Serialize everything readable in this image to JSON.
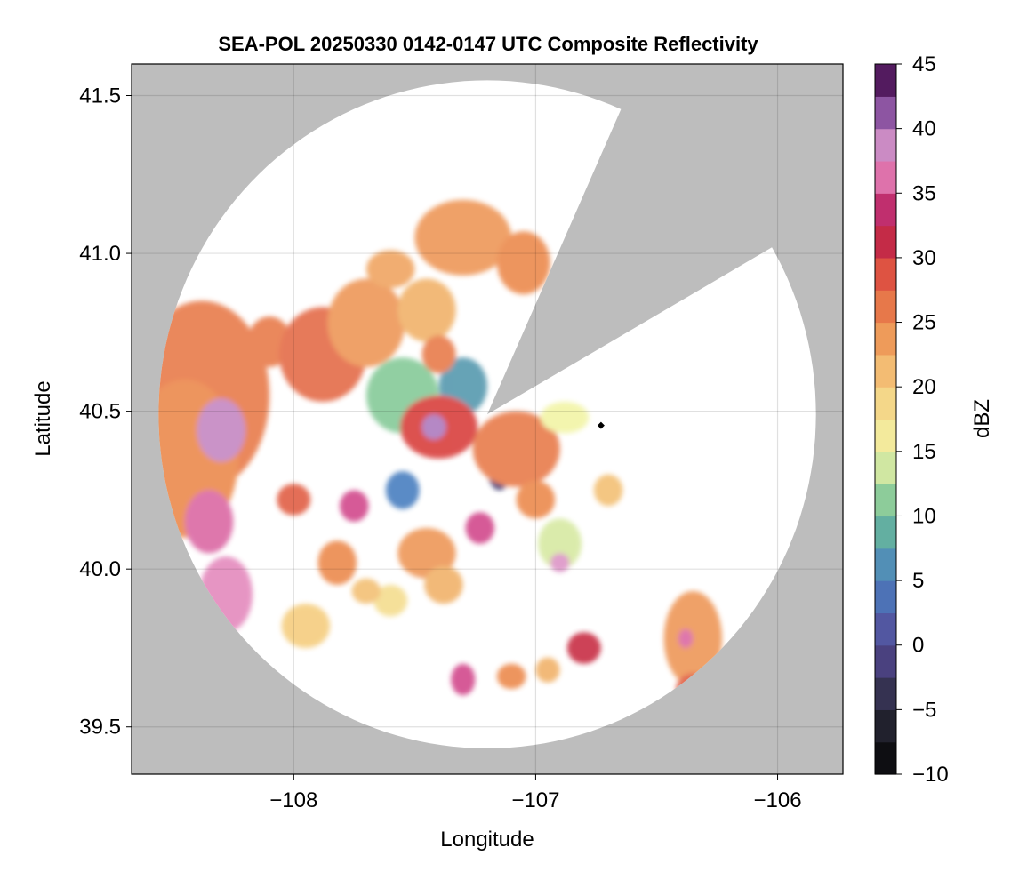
{
  "chart_data": {
    "type": "heatmap",
    "title": "SEA-POL 20250330 0142-0147 UTC Composite Reflectivity",
    "xlabel": "Longitude",
    "ylabel": "Latitude",
    "xlim": [
      -108.67,
      -105.73
    ],
    "ylim": [
      39.35,
      41.6
    ],
    "xticks": [
      -108,
      -107,
      -106
    ],
    "xtick_labels": [
      "−108",
      "−107",
      "−106"
    ],
    "yticks": [
      39.5,
      40.0,
      40.5,
      41.0,
      41.5
    ],
    "ytick_labels": [
      "39.5",
      "40.0",
      "40.5",
      "41.0",
      "41.5"
    ],
    "grid": true,
    "background_color": "#bdbdbd",
    "coverage_color": "#ffffff",
    "radar": {
      "center": [
        -107.2,
        40.49
      ],
      "range_deg": 1.43,
      "blocked_sectors_deg_cw_from_north": [
        [
          25,
          60
        ]
      ]
    },
    "site_marker": {
      "lon": -106.73,
      "lat": 40.455,
      "color": "#000000"
    },
    "colorbar": {
      "label": "dBZ",
      "min": -10,
      "max": 45,
      "step": 2.5,
      "ticks": [
        -10,
        -5,
        0,
        5,
        10,
        15,
        20,
        25,
        30,
        35,
        40,
        45
      ],
      "tick_labels": [
        "−10",
        "−5",
        "0",
        "5",
        "10",
        "15",
        "20",
        "25",
        "30",
        "35",
        "40",
        "45"
      ],
      "colormap_stops": [
        {
          "v": -10,
          "c": "#050505"
        },
        {
          "v": -5,
          "c": "#2a2a3a"
        },
        {
          "v": 0,
          "c": "#544996"
        },
        {
          "v": 5,
          "c": "#4a7fc0"
        },
        {
          "v": 10,
          "c": "#6bbf96"
        },
        {
          "v": 15,
          "c": "#f2f4a6"
        },
        {
          "v": 20,
          "c": "#f5cd7f"
        },
        {
          "v": 25,
          "c": "#ec8a4e"
        },
        {
          "v": 30,
          "c": "#d9403e"
        },
        {
          "v": 32.5,
          "c": "#ae1550"
        },
        {
          "v": 35,
          "c": "#d2488c"
        },
        {
          "v": 37.5,
          "c": "#e99bc9"
        },
        {
          "v": 40,
          "c": "#ad7bbf"
        },
        {
          "v": 42.5,
          "c": "#6c2e85"
        },
        {
          "v": 45,
          "c": "#3a0838"
        }
      ]
    },
    "echo_cells": [
      {
        "lon": -108.38,
        "lat": 40.55,
        "rx": 0.28,
        "ry": 0.3,
        "dbz": 26
      },
      {
        "lon": -108.45,
        "lat": 40.35,
        "rx": 0.22,
        "ry": 0.25,
        "dbz": 25
      },
      {
        "lon": -108.3,
        "lat": 40.44,
        "rx": 0.1,
        "ry": 0.1,
        "dbz": 39
      },
      {
        "lon": -108.35,
        "lat": 40.15,
        "rx": 0.1,
        "ry": 0.1,
        "dbz": 36
      },
      {
        "lon": -108.28,
        "lat": 39.92,
        "rx": 0.11,
        "ry": 0.12,
        "dbz": 37
      },
      {
        "lon": -108.1,
        "lat": 40.72,
        "rx": 0.09,
        "ry": 0.08,
        "dbz": 26
      },
      {
        "lon": -107.88,
        "lat": 40.68,
        "rx": 0.18,
        "ry": 0.15,
        "dbz": 27
      },
      {
        "lon": -107.7,
        "lat": 40.78,
        "rx": 0.16,
        "ry": 0.14,
        "dbz": 24
      },
      {
        "lon": -107.6,
        "lat": 40.95,
        "rx": 0.1,
        "ry": 0.06,
        "dbz": 23
      },
      {
        "lon": -107.3,
        "lat": 41.05,
        "rx": 0.2,
        "ry": 0.12,
        "dbz": 24
      },
      {
        "lon": -107.05,
        "lat": 40.97,
        "rx": 0.11,
        "ry": 0.1,
        "dbz": 25
      },
      {
        "lon": -107.45,
        "lat": 40.82,
        "rx": 0.12,
        "ry": 0.1,
        "dbz": 22
      },
      {
        "lon": -107.55,
        "lat": 40.55,
        "rx": 0.15,
        "ry": 0.12,
        "dbz": 11
      },
      {
        "lon": -107.3,
        "lat": 40.58,
        "rx": 0.1,
        "ry": 0.09,
        "dbz": 7
      },
      {
        "lon": -107.4,
        "lat": 40.45,
        "rx": 0.16,
        "ry": 0.1,
        "dbz": 30
      },
      {
        "lon": -107.42,
        "lat": 40.45,
        "rx": 0.05,
        "ry": 0.04,
        "dbz": 40
      },
      {
        "lon": -107.55,
        "lat": 40.25,
        "rx": 0.07,
        "ry": 0.06,
        "dbz": 5
      },
      {
        "lon": -107.15,
        "lat": 40.32,
        "rx": 0.05,
        "ry": 0.07,
        "dbz": -2
      },
      {
        "lon": -107.08,
        "lat": 40.38,
        "rx": 0.18,
        "ry": 0.12,
        "dbz": 26
      },
      {
        "lon": -106.88,
        "lat": 40.48,
        "rx": 0.1,
        "ry": 0.05,
        "dbz": 15
      },
      {
        "lon": -107.23,
        "lat": 40.13,
        "rx": 0.06,
        "ry": 0.05,
        "dbz": 35
      },
      {
        "lon": -106.9,
        "lat": 40.08,
        "rx": 0.09,
        "ry": 0.08,
        "dbz": 14
      },
      {
        "lon": -106.9,
        "lat": 40.02,
        "rx": 0.04,
        "ry": 0.03,
        "dbz": 38
      },
      {
        "lon": -107.75,
        "lat": 40.2,
        "rx": 0.06,
        "ry": 0.05,
        "dbz": 35
      },
      {
        "lon": -108.0,
        "lat": 40.22,
        "rx": 0.07,
        "ry": 0.05,
        "dbz": 28
      },
      {
        "lon": -107.82,
        "lat": 40.02,
        "rx": 0.08,
        "ry": 0.07,
        "dbz": 25
      },
      {
        "lon": -107.45,
        "lat": 40.05,
        "rx": 0.12,
        "ry": 0.08,
        "dbz": 24
      },
      {
        "lon": -107.38,
        "lat": 39.95,
        "rx": 0.08,
        "ry": 0.06,
        "dbz": 22
      },
      {
        "lon": -107.6,
        "lat": 39.9,
        "rx": 0.07,
        "ry": 0.05,
        "dbz": 18
      },
      {
        "lon": -107.95,
        "lat": 39.82,
        "rx": 0.1,
        "ry": 0.07,
        "dbz": 20
      },
      {
        "lon": -107.7,
        "lat": 39.93,
        "rx": 0.06,
        "ry": 0.04,
        "dbz": 21
      },
      {
        "lon": -107.3,
        "lat": 39.65,
        "rx": 0.05,
        "ry": 0.05,
        "dbz": 35
      },
      {
        "lon": -107.1,
        "lat": 39.66,
        "rx": 0.06,
        "ry": 0.04,
        "dbz": 25
      },
      {
        "lon": -106.95,
        "lat": 39.68,
        "rx": 0.05,
        "ry": 0.04,
        "dbz": 22
      },
      {
        "lon": -106.8,
        "lat": 39.75,
        "rx": 0.07,
        "ry": 0.05,
        "dbz": 31
      },
      {
        "lon": -106.35,
        "lat": 39.78,
        "rx": 0.12,
        "ry": 0.15,
        "dbz": 24
      },
      {
        "lon": -106.35,
        "lat": 39.62,
        "rx": 0.07,
        "ry": 0.05,
        "dbz": 28
      },
      {
        "lon": -106.38,
        "lat": 39.78,
        "rx": 0.03,
        "ry": 0.03,
        "dbz": 36
      },
      {
        "lon": -106.7,
        "lat": 40.25,
        "rx": 0.06,
        "ry": 0.05,
        "dbz": 21
      },
      {
        "lon": -107.0,
        "lat": 40.22,
        "rx": 0.08,
        "ry": 0.06,
        "dbz": 25
      },
      {
        "lon": -107.4,
        "lat": 40.68,
        "rx": 0.07,
        "ry": 0.06,
        "dbz": 26
      }
    ]
  }
}
